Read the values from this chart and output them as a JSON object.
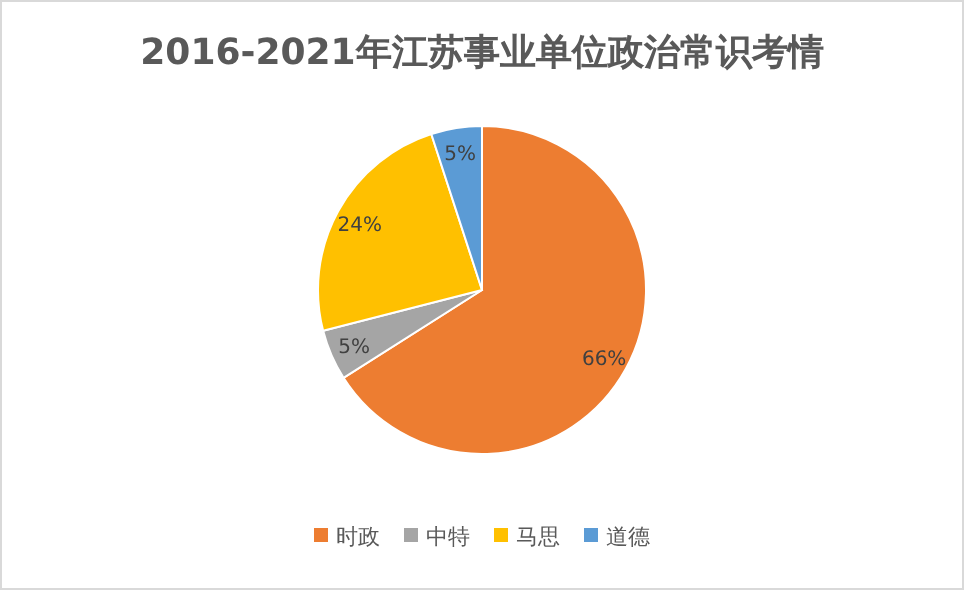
{
  "chart_data": {
    "type": "pie",
    "title": "2016-2021年江苏事业单位政治常识考情",
    "categories": [
      "时政",
      "中特",
      "马思",
      "道德"
    ],
    "values": [
      66,
      5,
      24,
      5
    ],
    "colors": [
      "#ed7d31",
      "#a5a5a5",
      "#ffc000",
      "#5b9bd5"
    ],
    "value_labels": [
      "66%",
      "5%",
      "24%",
      "5%"
    ],
    "legend": "bottom"
  }
}
